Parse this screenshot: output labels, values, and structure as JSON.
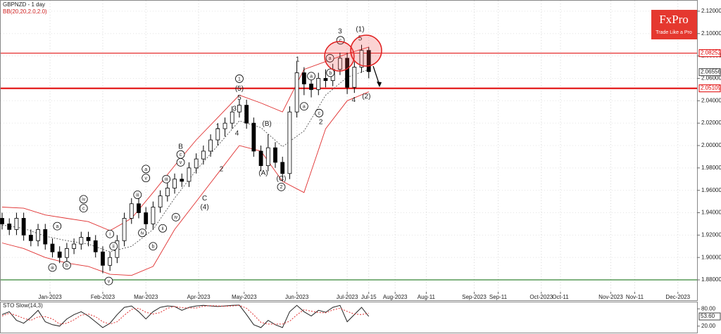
{
  "logo": {
    "title": "FxPro",
    "tagline": "Trade Like a Pro"
  },
  "chart_data": [
    {
      "type": "candlestick",
      "title": "GBPNZD - 1 day",
      "indicator": "BB(20,20,2.0,2.0)",
      "x": [
        0,
        3,
        6,
        9,
        12,
        15,
        18,
        21,
        24,
        27,
        30,
        33,
        36,
        39,
        42,
        45,
        48,
        51,
        54,
        57,
        60,
        63,
        66,
        69,
        72,
        75,
        78,
        81,
        84,
        87,
        90,
        93,
        96,
        99,
        102,
        105,
        108,
        111,
        114,
        117,
        120,
        123,
        126,
        129,
        132,
        135,
        138,
        141,
        144,
        147,
        150,
        153
      ],
      "open": [
        1.935,
        1.93,
        1.925,
        1.935,
        1.92,
        1.915,
        1.925,
        1.912,
        1.905,
        1.9,
        1.908,
        1.912,
        1.918,
        1.915,
        1.905,
        1.893,
        1.9,
        1.915,
        1.935,
        1.948,
        1.94,
        1.93,
        1.945,
        1.955,
        1.962,
        1.97,
        1.968,
        1.98,
        1.988,
        1.995,
        2.005,
        2.015,
        2.02,
        2.03,
        2.036,
        2.02,
        1.995,
        1.982,
        1.998,
        1.985,
        1.975,
        2.03,
        2.065,
        2.055,
        2.05,
        2.06,
        2.058,
        2.068,
        2.078,
        2.052,
        2.07,
        2.085
      ],
      "high": [
        1.94,
        1.935,
        1.94,
        1.94,
        1.925,
        1.93,
        1.93,
        1.917,
        1.91,
        1.913,
        1.917,
        1.923,
        1.923,
        1.92,
        1.91,
        1.905,
        1.92,
        1.94,
        1.953,
        1.953,
        1.945,
        1.95,
        1.96,
        1.968,
        1.975,
        1.975,
        1.985,
        1.993,
        2.0,
        2.01,
        2.02,
        2.025,
        2.035,
        2.041,
        2.041,
        2.025,
        2.0,
        2.01,
        2.003,
        1.99,
        2.035,
        2.075,
        2.07,
        2.062,
        2.065,
        2.068,
        2.073,
        2.083,
        2.083,
        2.075,
        2.09,
        2.088
      ],
      "low": [
        1.925,
        1.92,
        1.92,
        1.915,
        1.91,
        1.91,
        1.907,
        1.9,
        1.895,
        1.895,
        1.903,
        1.907,
        1.91,
        1.9,
        1.886,
        1.888,
        1.895,
        1.91,
        1.93,
        1.935,
        1.925,
        1.925,
        1.94,
        1.95,
        1.957,
        1.963,
        1.963,
        1.975,
        1.983,
        1.99,
        2.0,
        2.008,
        2.015,
        2.025,
        2.015,
        1.99,
        1.977,
        1.977,
        1.98,
        1.968,
        1.97,
        2.025,
        2.045,
        2.043,
        2.045,
        2.052,
        2.053,
        2.063,
        2.046,
        2.047,
        2.065,
        2.06
      ],
      "close": [
        1.93,
        1.925,
        1.935,
        1.92,
        1.915,
        1.925,
        1.912,
        1.905,
        1.9,
        1.908,
        1.912,
        1.918,
        1.915,
        1.905,
        1.893,
        1.9,
        1.915,
        1.935,
        1.948,
        1.94,
        1.93,
        1.945,
        1.955,
        1.962,
        1.97,
        1.968,
        1.98,
        1.988,
        1.995,
        2.005,
        2.015,
        2.02,
        2.03,
        2.036,
        2.02,
        1.995,
        1.982,
        1.998,
        1.985,
        1.975,
        2.03,
        2.065,
        2.055,
        2.05,
        2.06,
        2.058,
        2.068,
        2.078,
        2.052,
        2.07,
        2.085,
        2.066
      ],
      "overlays": [
        {
          "x": [
            0,
            9,
            18,
            27,
            36,
            45,
            54,
            63,
            72,
            81,
            90,
            99,
            108,
            117,
            126,
            135,
            144,
            153
          ],
          "values": [
            1.945,
            1.944,
            1.938,
            1.935,
            1.932,
            1.924,
            1.935,
            1.958,
            1.982,
            2.005,
            2.025,
            2.045,
            2.038,
            2.03,
            2.068,
            2.075,
            2.082,
            2.088
          ],
          "color": "#e03030",
          "dashed": false
        },
        {
          "x": [
            0,
            9,
            18,
            27,
            36,
            45,
            54,
            63,
            72,
            81,
            90,
            99,
            108,
            117,
            126,
            135,
            144,
            153
          ],
          "values": [
            1.929,
            1.926,
            1.919,
            1.915,
            1.912,
            1.905,
            1.91,
            1.925,
            1.953,
            1.978,
            2.0,
            2.022,
            2.016,
            1.999,
            2.013,
            2.045,
            2.061,
            2.068
          ],
          "color": "#555555",
          "dashed": true
        },
        {
          "x": [
            0,
            9,
            18,
            27,
            36,
            45,
            54,
            63,
            72,
            81,
            90,
            99,
            108,
            117,
            126,
            135,
            144,
            153
          ],
          "values": [
            1.913,
            1.908,
            1.9,
            1.895,
            1.892,
            1.885,
            1.884,
            1.892,
            1.925,
            1.95,
            1.975,
            2.0,
            1.995,
            1.968,
            1.958,
            2.015,
            2.04,
            2.048
          ],
          "color": "#e03030",
          "dashed": false
        }
      ],
      "levels": [
        {
          "value": 2.08252,
          "label": "2.08252",
          "color": "#e00000",
          "width": 1
        },
        {
          "value": 2.05109,
          "label": "2.05109",
          "color": "#e00000",
          "width": 2
        },
        {
          "value": 1.88,
          "color": "#006400",
          "width": 1
        }
      ],
      "last": {
        "value": 2.06556,
        "label": "2.06556"
      },
      "xlim": [
        0,
        290
      ],
      "ylim": [
        1.8618,
        2.13
      ],
      "yticks": [
        {
          "value": 2.12,
          "label": "2.12000"
        },
        {
          "value": 2.1,
          "label": "2.10000"
        },
        {
          "value": 2.08,
          "label": "2.08000"
        },
        {
          "value": 2.06,
          "label": "2.06000"
        },
        {
          "value": 2.04,
          "label": "2.04000"
        },
        {
          "value": 2.02,
          "label": "2.02000"
        },
        {
          "value": 2,
          "label": "2.00000"
        },
        {
          "value": 1.98,
          "label": "1.98000"
        },
        {
          "value": 1.96,
          "label": "1.96000"
        },
        {
          "value": 1.94,
          "label": "1.94000"
        },
        {
          "value": 1.92,
          "label": "1.92000"
        },
        {
          "value": 1.9,
          "label": "1.90000"
        },
        {
          "value": 1.88,
          "label": "1.88000"
        }
      ],
      "xticks": [
        {
          "value": 20,
          "label": "Jan-2023"
        },
        {
          "value": 42,
          "label": "Feb-2023"
        },
        {
          "value": 60,
          "label": "Mar-2023"
        },
        {
          "value": 82,
          "label": "Apr-2023"
        },
        {
          "value": 101,
          "label": "May-2023"
        },
        {
          "value": 123,
          "label": "Jun-2023"
        },
        {
          "value": 144,
          "label": "Jul-2023"
        },
        {
          "value": 153,
          "label": "Jul-15"
        },
        {
          "value": 164,
          "label": "Aug-2023"
        },
        {
          "value": 177,
          "label": "Aug-11"
        },
        {
          "value": 197,
          "label": "Sep-2023"
        },
        {
          "value": 207,
          "label": "Sep-11"
        },
        {
          "value": 225,
          "label": "Oct-2023"
        },
        {
          "value": 233,
          "label": "Oct-11"
        },
        {
          "value": 254,
          "label": "Nov-2023"
        },
        {
          "value": 264,
          "label": "Nov-11"
        },
        {
          "value": 282,
          "label": "Dec-2023"
        }
      ],
      "grid": true,
      "annotations": [
        {
          "text": "a",
          "x": 23,
          "y": 1.928,
          "circled": true
        },
        {
          "text": "iii",
          "x": 21,
          "y": 1.891,
          "circled": true
        },
        {
          "text": "b",
          "x": 27,
          "y": 1.893,
          "circled": true
        },
        {
          "text": "iv",
          "x": 34,
          "y": 1.952,
          "circled": true
        },
        {
          "text": "c",
          "x": 34,
          "y": 1.944,
          "circled": true
        },
        {
          "text": "i",
          "x": 45,
          "y": 1.921,
          "circled": true
        },
        {
          "text": "ii",
          "x": 46.5,
          "y": 1.91,
          "circled": true
        },
        {
          "text": "v",
          "x": 44.5,
          "y": 1.879,
          "circled": true
        },
        {
          "text": "iii",
          "x": 56.5,
          "y": 1.956,
          "circled": true
        },
        {
          "text": "iv",
          "x": 58.5,
          "y": 1.922,
          "circled": true
        },
        {
          "text": "a",
          "x": 60,
          "y": 1.979,
          "circled": true
        },
        {
          "text": "v",
          "x": 60,
          "y": 1.971,
          "circled": true
        },
        {
          "text": "b",
          "x": 63,
          "y": 1.91,
          "circled": true
        },
        {
          "text": "ii",
          "x": 67,
          "y": 1.926,
          "circled": true
        },
        {
          "text": "iii",
          "x": 68.5,
          "y": 1.97,
          "circled": true
        },
        {
          "text": "iv",
          "x": 72.5,
          "y": 1.936,
          "circled": true
        },
        {
          "text": "B",
          "x": 74.5,
          "y": 1.999,
          "circled": false
        },
        {
          "text": "c",
          "x": 74.5,
          "y": 1.992,
          "circled": true
        },
        {
          "text": "v",
          "x": 74.5,
          "y": 1.985,
          "circled": true
        },
        {
          "text": "C",
          "x": 84.5,
          "y": 1.953,
          "circled": false
        },
        {
          "text": "(4)",
          "x": 84.5,
          "y": 1.945,
          "circled": false
        },
        {
          "text": "1",
          "x": 90,
          "y": 2.017,
          "circled": false
        },
        {
          "text": "2",
          "x": 91.5,
          "y": 1.979,
          "circled": false
        },
        {
          "text": "3",
          "x": 97,
          "y": 2.033,
          "circled": false
        },
        {
          "text": "4",
          "x": 98,
          "y": 2.011,
          "circled": false
        },
        {
          "text": "1",
          "x": 99,
          "y": 2.0597,
          "circled": true
        },
        {
          "text": "(5)",
          "x": 99,
          "y": 2.0509,
          "circled": false
        },
        {
          "text": "5",
          "x": 99,
          "y": 2.0427,
          "circled": false
        },
        {
          "text": "(B)",
          "x": 110.5,
          "y": 2.0195,
          "circled": false
        },
        {
          "text": "(A)",
          "x": 109,
          "y": 1.9755,
          "circled": false
        },
        {
          "text": "(C)",
          "x": 116.5,
          "y": 1.9705,
          "circled": false
        },
        {
          "text": "2",
          "x": 116.5,
          "y": 1.963,
          "circled": true
        },
        {
          "text": "1",
          "x": 123.3,
          "y": 2.077,
          "circled": false
        },
        {
          "text": "a",
          "x": 126,
          "y": 2.035,
          "circled": true
        },
        {
          "text": "a",
          "x": 129,
          "y": 2.062,
          "circled": true
        },
        {
          "text": "c",
          "x": 132.3,
          "y": 2.029,
          "circled": true
        },
        {
          "text": "2",
          "x": 133,
          "y": 2.021,
          "circled": false
        },
        {
          "text": "b",
          "x": 137,
          "y": 2.065,
          "circled": true
        },
        {
          "text": "a",
          "x": 136.8,
          "y": 2.078,
          "circled": true
        },
        {
          "text": "3",
          "x": 141,
          "y": 2.102,
          "circled": false
        },
        {
          "text": "c",
          "x": 141.2,
          "y": 2.094,
          "circled": true
        },
        {
          "text": "4",
          "x": 146.7,
          "y": 2.041,
          "circled": false
        },
        {
          "text": "(1)",
          "x": 149.4,
          "y": 2.104,
          "circled": false
        },
        {
          "text": "5",
          "x": 149.4,
          "y": 2.096,
          "circled": false
        },
        {
          "text": "(2)",
          "x": 152,
          "y": 2.044,
          "circled": false
        }
      ]
    },
    {
      "type": "line",
      "title": "STO Slow(14,3)",
      "x": [
        0,
        3,
        6,
        9,
        12,
        15,
        18,
        21,
        24,
        27,
        30,
        33,
        36,
        39,
        42,
        45,
        48,
        51,
        54,
        57,
        60,
        63,
        66,
        69,
        72,
        75,
        78,
        81,
        84,
        87,
        90,
        93,
        96,
        99,
        102,
        105,
        108,
        111,
        114,
        117,
        120,
        123,
        126,
        129,
        132,
        135,
        138,
        141,
        144,
        147,
        150,
        153
      ],
      "series": [
        {
          "color": "#222222",
          "dashed": false,
          "values": [
            60,
            70,
            40,
            30,
            50,
            75,
            35,
            25,
            20,
            45,
            60,
            70,
            55,
            35,
            15,
            30,
            60,
            85,
            90,
            70,
            45,
            70,
            85,
            90,
            88,
            75,
            85,
            90,
            92,
            90,
            88,
            90,
            92,
            93,
            60,
            25,
            15,
            40,
            25,
            15,
            70,
            92,
            70,
            55,
            75,
            68,
            85,
            92,
            35,
            60,
            85,
            53.6
          ]
        },
        {
          "color": "#e03030",
          "dashed": true,
          "values": [
            55,
            65,
            57,
            47,
            40,
            52,
            53,
            45,
            27,
            30,
            42,
            58,
            62,
            53,
            35,
            27,
            35,
            58,
            78,
            82,
            68,
            62,
            67,
            82,
            88,
            84,
            83,
            83,
            89,
            91,
            90,
            89,
            90,
            92,
            82,
            59,
            33,
            27,
            27,
            27,
            37,
            59,
            77,
            72,
            67,
            66,
            76,
            82,
            71,
            62,
            60,
            65
          ]
        }
      ],
      "last": {
        "value": 53.6,
        "label": "53.60"
      },
      "xlim": [
        0,
        290
      ],
      "ylim": [
        0,
        100
      ],
      "yticks": [
        {
          "value": 80,
          "label": "80.00"
        },
        {
          "value": 20,
          "label": "20.00"
        }
      ]
    }
  ]
}
